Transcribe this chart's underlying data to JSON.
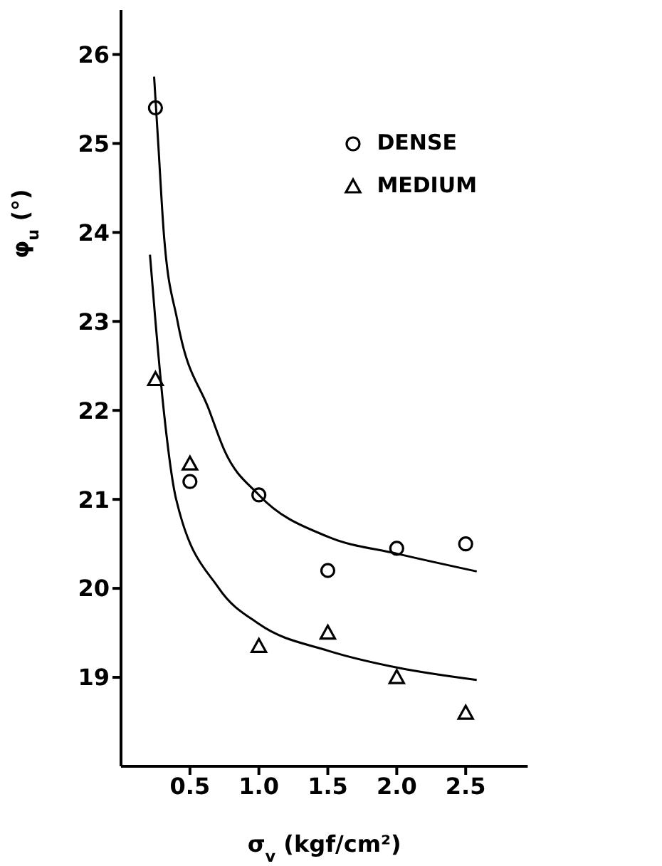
{
  "chart_data": {
    "type": "scatter",
    "xlabel": "σ$_{v}$ (kgf/cm²)",
    "ylabel": "φ$_{u}$ (°)",
    "xlim": [
      0,
      2.95
    ],
    "xticks": [
      {
        "value": 0.5,
        "label": "0.5"
      },
      {
        "value": 1,
        "label": "1.0"
      },
      {
        "value": 1.5,
        "label": "1.5"
      },
      {
        "value": 2,
        "label": "2.0"
      },
      {
        "value": 2.5,
        "label": "2.5"
      }
    ],
    "ylim": [
      18,
      26.5
    ],
    "yticks": [
      19,
      20,
      21,
      22,
      23,
      24,
      25,
      26
    ],
    "grid": false,
    "legend": "top right",
    "series": [
      {
        "name": "DENSE",
        "marker": "circle",
        "color": "#000000",
        "x": [
          0.25,
          0.5,
          1.0,
          1.5,
          2.0,
          2.5
        ],
        "values": [
          25.4,
          21.2,
          21.05,
          20.2,
          20.45,
          20.5
        ]
      },
      {
        "name": "MEDIUM",
        "marker": "triangle",
        "color": "#000000",
        "x": [
          0.25,
          0.5,
          1.0,
          1.5,
          2.0,
          2.5
        ],
        "values": [
          22.35,
          21.4,
          19.35,
          19.5,
          19.0,
          18.6
        ]
      },
      {
        "type": "line",
        "marker": "none",
        "line_style": "solid",
        "color": "#000000",
        "x": [
          0.24,
          0.27,
          0.31,
          0.41,
          0.64,
          0.75,
          1.0,
          1.5,
          2.0,
          2.58
        ],
        "values": [
          25.75,
          25.0,
          24.0,
          23.0,
          22.0,
          21.55,
          21.05,
          20.58,
          20.39,
          20.19
        ]
      },
      {
        "type": "line",
        "marker": "none",
        "line_style": "solid",
        "color": "#000000",
        "x": [
          0.21,
          0.25,
          0.31,
          0.4,
          0.71,
          1.0,
          1.5,
          2.0,
          2.58
        ],
        "values": [
          23.75,
          23.0,
          22.0,
          21.0,
          20.0,
          19.6,
          19.3,
          19.11,
          18.97
        ]
      }
    ]
  }
}
